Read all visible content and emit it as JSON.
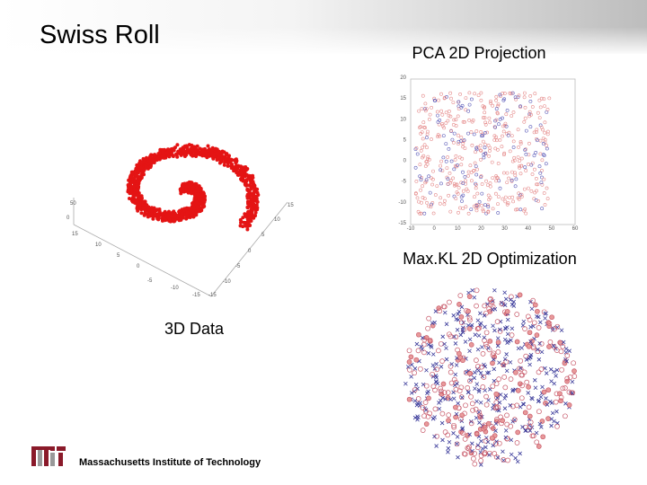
{
  "header": {
    "title": "Swiss Roll"
  },
  "panels": [
    {
      "caption": "3D Data",
      "left_axis_labels": [
        "50",
        "0",
        "15",
        "10",
        "5",
        "0",
        "-5",
        "-10",
        "-15"
      ],
      "right_axis_labels": [
        "15",
        "10",
        "5",
        "0",
        "-5",
        "-10",
        "-15"
      ]
    },
    {
      "caption": "PCA 2D Projection",
      "yticks": [
        "20",
        "15",
        "10",
        "5",
        "0",
        "-5",
        "-10",
        "-15"
      ],
      "xticks": [
        "-10",
        "0",
        "10",
        "20",
        "30",
        "40",
        "50",
        "60"
      ]
    },
    {
      "caption": "Max.KL 2D Optimization"
    }
  ],
  "footer": {
    "institution": "Massachusetts Institute of Technology"
  }
}
